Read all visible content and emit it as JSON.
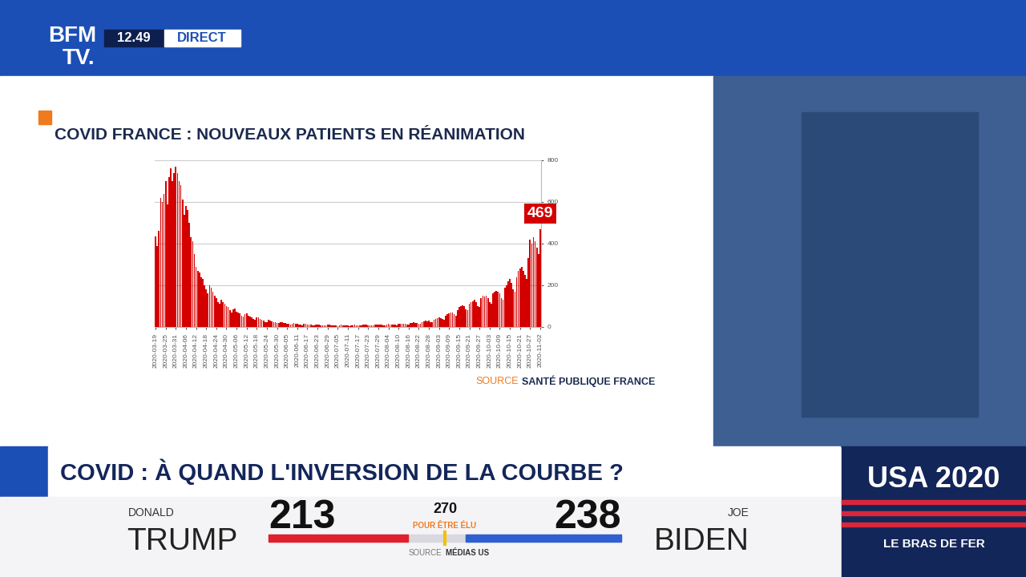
{
  "chart_data": {
    "type": "bar",
    "title": "COVID FRANCE : NOUVEAUX PATIENTS EN RÉANIMATION",
    "categories": [
      "2020-03-19",
      null,
      null,
      null,
      null,
      null,
      "2020-03-25",
      null,
      null,
      null,
      null,
      null,
      "2020-03-31",
      null,
      null,
      null,
      null,
      null,
      "2020-04-06",
      null,
      null,
      null,
      null,
      null,
      "2020-04-12",
      null,
      null,
      null,
      null,
      null,
      "2020-04-18",
      null,
      null,
      null,
      null,
      null,
      "2020-04-24",
      null,
      null,
      null,
      null,
      null,
      "2020-04-30",
      null,
      null,
      null,
      null,
      null,
      "2020-05-06",
      null,
      null,
      null,
      null,
      null,
      "2020-05-12",
      null,
      null,
      null,
      null,
      null,
      "2020-05-18",
      null,
      null,
      null,
      null,
      null,
      "2020-05-24",
      null,
      null,
      null,
      null,
      null,
      "2020-05-30",
      null,
      null,
      null,
      null,
      null,
      "2020-06-05",
      null,
      null,
      null,
      null,
      null,
      "2020-06-11",
      null,
      null,
      null,
      null,
      null,
      "2020-06-17",
      null,
      null,
      null,
      null,
      null,
      "2020-06-23",
      null,
      null,
      null,
      null,
      null,
      "2020-06-29",
      null,
      null,
      null,
      null,
      null,
      "2020-07-05",
      null,
      null,
      null,
      null,
      null,
      "2020-07-11",
      null,
      null,
      null,
      null,
      null,
      "2020-07-17",
      null,
      null,
      null,
      null,
      null,
      "2020-07-23",
      null,
      null,
      null,
      null,
      null,
      "2020-07-29",
      null,
      null,
      null,
      null,
      null,
      "2020-08-04",
      null,
      null,
      null,
      null,
      null,
      "2020-08-10",
      null,
      null,
      null,
      null,
      null,
      "2020-08-16",
      null,
      null,
      null,
      null,
      null,
      "2020-08-22",
      null,
      null,
      null,
      null,
      null,
      "2020-08-28",
      null,
      null,
      null,
      null,
      null,
      "2020-09-03",
      null,
      null,
      null,
      null,
      null,
      "2020-09-09",
      null,
      null,
      null,
      null,
      null,
      "2020-09-15",
      null,
      null,
      null,
      null,
      null,
      "2020-09-21",
      null,
      null,
      null,
      null,
      null,
      "2020-09-27",
      null,
      null,
      null,
      null,
      null,
      "2020-10-03",
      null,
      null,
      null,
      null,
      null,
      "2020-10-09",
      null,
      null,
      null,
      null,
      null,
      "2020-10-15",
      null,
      null,
      null,
      null,
      null,
      "2020-10-21",
      null,
      null,
      null,
      null,
      null,
      "2020-10-27",
      null,
      null,
      null,
      null,
      null,
      "2020-11-02"
    ],
    "values": [
      435,
      390,
      460,
      620,
      600,
      640,
      700,
      590,
      720,
      760,
      700,
      740,
      770,
      740,
      700,
      680,
      610,
      540,
      580,
      560,
      500,
      430,
      410,
      350,
      290,
      270,
      260,
      240,
      230,
      200,
      180,
      160,
      200,
      190,
      170,
      150,
      140,
      120,
      110,
      130,
      120,
      110,
      100,
      95,
      80,
      70,
      85,
      90,
      75,
      70,
      65,
      55,
      50,
      60,
      65,
      55,
      50,
      45,
      40,
      35,
      45,
      45,
      40,
      35,
      30,
      25,
      25,
      35,
      30,
      28,
      25,
      22,
      20,
      18,
      22,
      25,
      20,
      18,
      17,
      15,
      12,
      16,
      18,
      15,
      14,
      13,
      10,
      9,
      14,
      15,
      12,
      11,
      10,
      8,
      7,
      11,
      12,
      10,
      9,
      9,
      7,
      6,
      10,
      11,
      9,
      8,
      8,
      6,
      5,
      9,
      10,
      9,
      8,
      8,
      6,
      5,
      8,
      7,
      10,
      9,
      8,
      7,
      6,
      10,
      11,
      10,
      9,
      9,
      8,
      7,
      11,
      12,
      11,
      10,
      10,
      9,
      8,
      12,
      14,
      13,
      12,
      13,
      10,
      9,
      14,
      15,
      16,
      15,
      16,
      12,
      11,
      18,
      20,
      22,
      20,
      21,
      17,
      15,
      24,
      28,
      30,
      28,
      30,
      25,
      22,
      35,
      40,
      42,
      45,
      44,
      38,
      34,
      55,
      60,
      65,
      70,
      68,
      60,
      55,
      80,
      95,
      100,
      105,
      100,
      85,
      80,
      110,
      120,
      125,
      130,
      120,
      100,
      95,
      140,
      150,
      145,
      150,
      140,
      120,
      110,
      160,
      170,
      175,
      170,
      160,
      140,
      130,
      190,
      200,
      220,
      230,
      210,
      180,
      170,
      240,
      270,
      280,
      290,
      270,
      250,
      230,
      330,
      420,
      400,
      430,
      410,
      380,
      350,
      469
    ],
    "color": "#d40000",
    "ylim": [
      0,
      800
    ],
    "yticks": [
      0,
      200,
      400,
      600,
      800
    ],
    "grid": true,
    "annotation": "469",
    "source_label": "SOURCE",
    "source": "SANTÉ PUBLIQUE FRANCE"
  },
  "header": {
    "logo": [
      "BFM",
      "TV."
    ],
    "time": "12.49",
    "status": "DIRECT"
  },
  "headline": "COVID : À QUAND L'INVERSION DE LA COURBE ?",
  "election": {
    "title": "USA 2020",
    "subtitle": "LE BRAS DE FER",
    "threshold": 270,
    "threshold_label": "POUR ÊTRE ÉLU",
    "source_label": "SOURCE",
    "source": "MÉDIAS US",
    "candidates": [
      {
        "first_name": "DONALD",
        "last_name": "TRUMP",
        "votes": 213,
        "color": "#e0202e"
      },
      {
        "first_name": "JOE",
        "last_name": "BIDEN",
        "votes": 238,
        "color": "#2f5fd0"
      }
    ]
  }
}
